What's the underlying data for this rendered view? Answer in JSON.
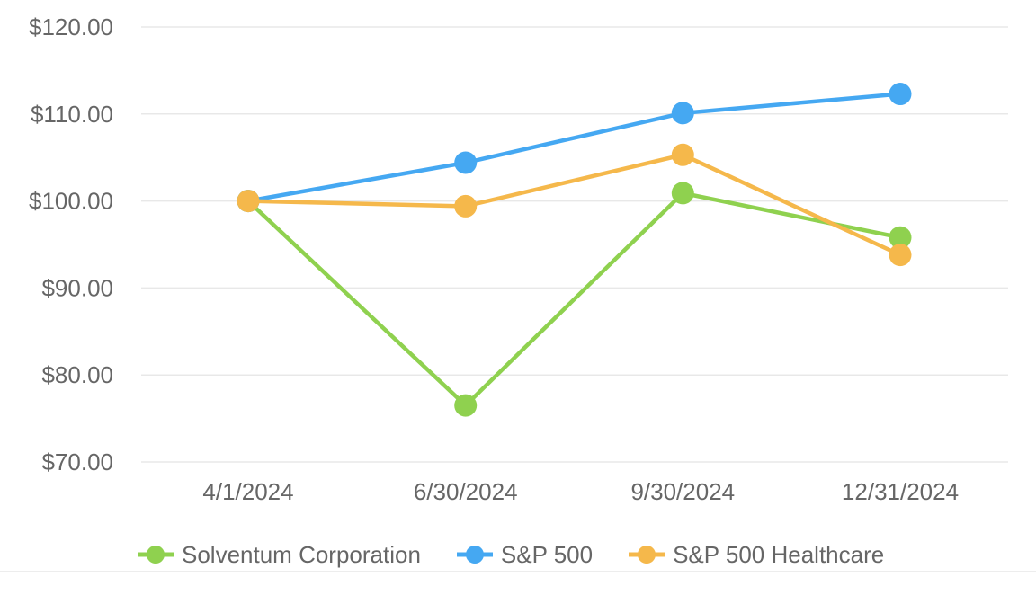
{
  "chart_data": {
    "type": "line",
    "title": "",
    "xlabel": "",
    "ylabel": "",
    "x": [
      "4/1/2024",
      "6/30/2024",
      "9/30/2024",
      "12/31/2024"
    ],
    "series": [
      {
        "name": "Solventum Corporation",
        "color": "#8FD14F",
        "values": [
          100.0,
          76.5,
          100.9,
          95.8
        ]
      },
      {
        "name": "S&P 500",
        "color": "#45A8F2",
        "values": [
          100.0,
          104.4,
          110.1,
          112.3
        ]
      },
      {
        "name": "S&P 500 Healthcare",
        "color": "#F5B84B",
        "values": [
          100.0,
          99.4,
          105.3,
          93.8
        ]
      }
    ],
    "y_ticks": [
      {
        "value": 120,
        "label": "$120.00"
      },
      {
        "value": 110,
        "label": "$110.00"
      },
      {
        "value": 100,
        "label": "$100.00"
      },
      {
        "value": 90,
        "label": "$90.00"
      },
      {
        "value": 80,
        "label": "$80.00"
      },
      {
        "value": 70,
        "label": "$70.00"
      }
    ],
    "ylim": [
      70,
      120
    ],
    "value_prefix": "$",
    "grid": "horizontal",
    "legend_position": "bottom"
  },
  "colors": {
    "background": "#FFFFFF",
    "gridline": "#E8E8E8",
    "axis_text": "#666666",
    "divider": "#EDEDED"
  }
}
